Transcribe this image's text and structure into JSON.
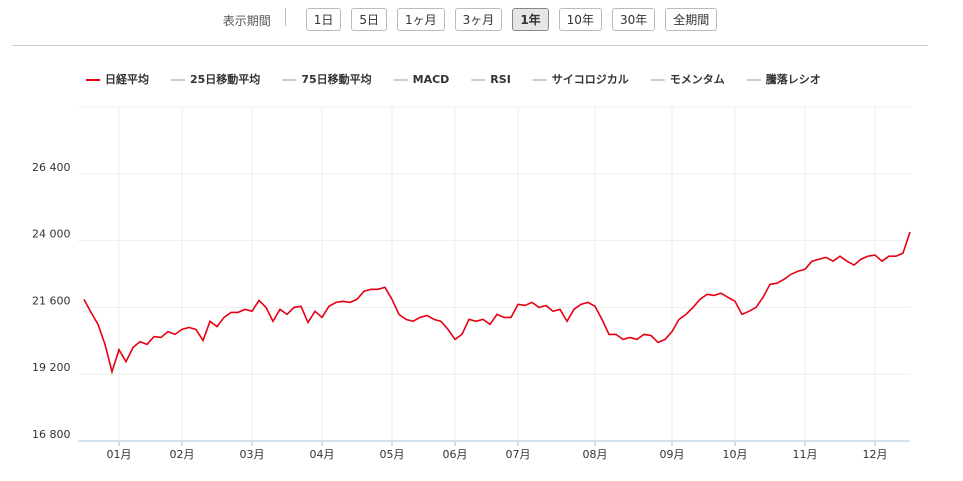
{
  "controls": {
    "label": "表示期間",
    "periods": [
      "1日",
      "5日",
      "1ヶ月",
      "3ヶ月",
      "1年",
      "10年",
      "30年",
      "全期間"
    ],
    "active": 4
  },
  "chart_data": {
    "type": "line",
    "series": [
      {
        "name": "日経平均",
        "color": "#e60012",
        "values": [
          21890,
          21420,
          20990,
          20270,
          19290,
          20080,
          19650,
          20160,
          20370,
          20270,
          20550,
          20520,
          20730,
          20630,
          20810,
          20880,
          20810,
          20410,
          21100,
          20910,
          21240,
          21420,
          21420,
          21530,
          21460,
          21850,
          21600,
          21100,
          21530,
          21350,
          21600,
          21640,
          21060,
          21460,
          21240,
          21640,
          21780,
          21820,
          21780,
          21890,
          22180,
          22250,
          22250,
          22320,
          21890,
          21350,
          21170,
          21100,
          21240,
          21310,
          21170,
          21100,
          20810,
          20450,
          20630,
          21170,
          21100,
          21170,
          20990,
          21350,
          21240,
          21240,
          21710,
          21670,
          21780,
          21600,
          21670,
          21460,
          21530,
          21100,
          21530,
          21710,
          21780,
          21640,
          21170,
          20630,
          20630,
          20450,
          20520,
          20450,
          20630,
          20590,
          20340,
          20450,
          20730,
          21170,
          21350,
          21600,
          21890,
          22070,
          22030,
          22110,
          21960,
          21820,
          21350,
          21460,
          21600,
          21960,
          22430,
          22470,
          22610,
          22790,
          22900,
          22970,
          23260,
          23330,
          23400,
          23260,
          23440,
          23260,
          23120,
          23330,
          23440,
          23480,
          23260,
          23440,
          23440,
          23550,
          24310
        ]
      }
    ],
    "indicators": [
      "25日移動平均",
      "75日移動平均",
      "MACD",
      "RSI",
      "サイコロジカル",
      "モメンタム",
      "騰落レシオ"
    ],
    "categories": [
      null,
      null,
      null,
      null,
      null,
      "01月",
      null,
      null,
      null,
      null,
      null,
      null,
      null,
      null,
      "02月",
      null,
      null,
      null,
      null,
      null,
      null,
      null,
      null,
      null,
      "03月",
      null,
      null,
      null,
      null,
      null,
      null,
      null,
      null,
      null,
      "04月",
      null,
      null,
      null,
      null,
      null,
      null,
      null,
      null,
      null,
      "05月",
      null,
      null,
      null,
      null,
      null,
      null,
      null,
      null,
      "06月",
      null,
      null,
      null,
      null,
      null,
      null,
      null,
      null,
      "07月",
      null,
      null,
      null,
      null,
      null,
      null,
      null,
      null,
      null,
      null,
      "08月",
      null,
      null,
      null,
      null,
      null,
      null,
      null,
      null,
      null,
      null,
      "09月",
      null,
      null,
      null,
      null,
      null,
      null,
      null,
      null,
      "10月",
      null,
      null,
      null,
      null,
      null,
      null,
      null,
      null,
      null,
      "11月",
      null,
      null,
      null,
      null,
      null,
      null,
      null,
      null,
      null,
      "12月",
      null,
      null,
      null,
      null,
      null
    ],
    "ylim": [
      16800,
      28800
    ],
    "yticks": [
      {
        "value": 16800,
        "label": "16 800"
      },
      {
        "value": 19200,
        "label": "19 200"
      },
      {
        "value": 21600,
        "label": "21 600"
      },
      {
        "value": 24000,
        "label": "24 000"
      },
      {
        "value": 26400,
        "label": "26 400"
      }
    ],
    "grid": true
  }
}
